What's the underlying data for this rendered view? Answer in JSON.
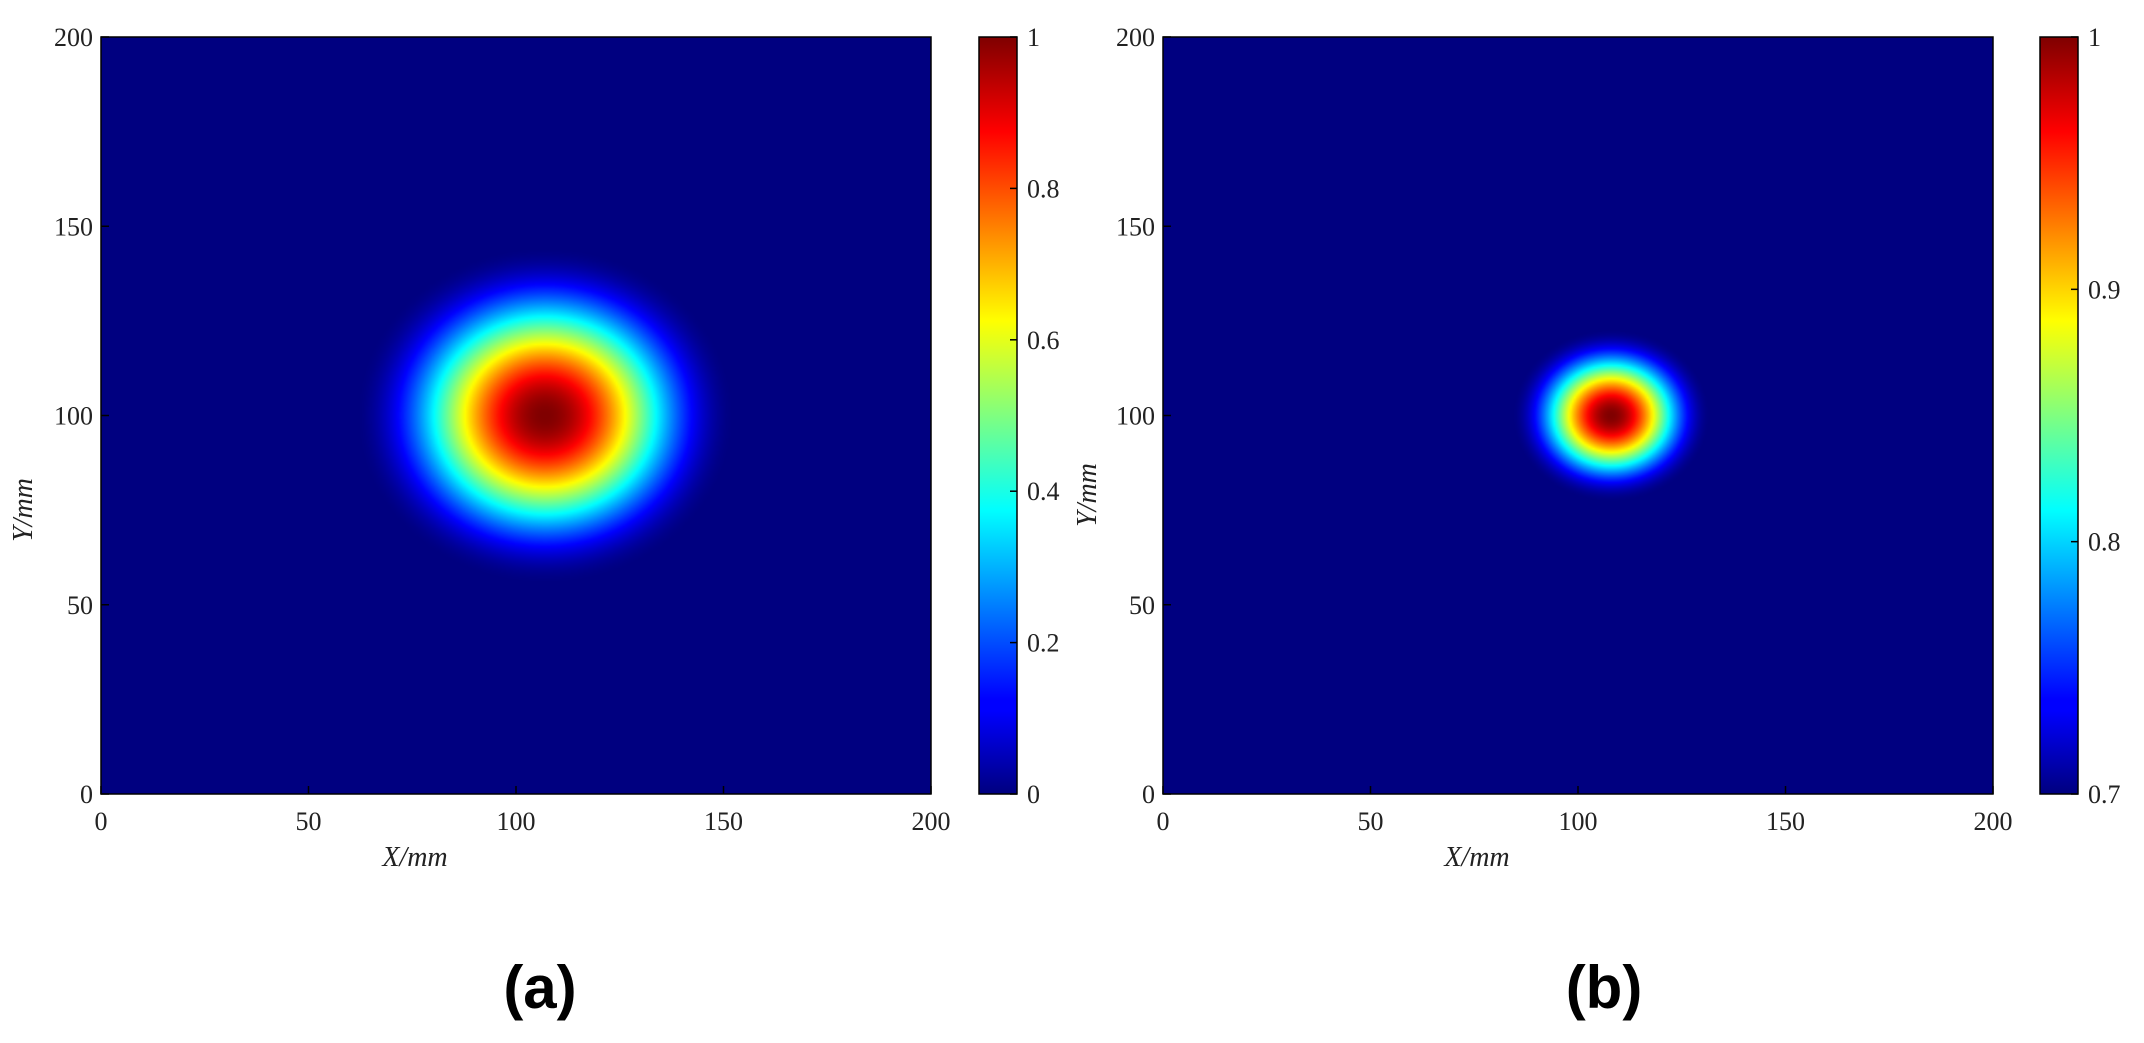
{
  "chart_data": [
    {
      "type": "heatmap",
      "panel_label": "(a)",
      "xlabel": "X/mm",
      "ylabel": "Y/mm",
      "xlim": [
        0,
        200
      ],
      "ylim": [
        0,
        200
      ],
      "xticks": [
        0,
        50,
        100,
        150,
        200
      ],
      "yticks": [
        0,
        50,
        100,
        150,
        200
      ],
      "colormap": "jet",
      "clim": [
        0,
        1
      ],
      "colorbar_ticks": [
        0,
        0.2,
        0.4,
        0.6,
        0.8,
        1
      ],
      "colorbar_tick_labels": [
        "0",
        "0.2",
        "0.4",
        "0.6",
        "0.8",
        "1"
      ],
      "hotspot": {
        "center_x": 107,
        "center_y": 100,
        "peak": 1,
        "radius_x": 46,
        "radius_y": 45,
        "background": 0
      }
    },
    {
      "type": "heatmap",
      "panel_label": "(b)",
      "xlabel": "X/mm",
      "ylabel": "Y/mm",
      "xlim": [
        0,
        200
      ],
      "ylim": [
        0,
        200
      ],
      "xticks": [
        0,
        50,
        100,
        150,
        200
      ],
      "yticks": [
        0,
        50,
        100,
        150,
        200
      ],
      "colormap": "jet",
      "clim": [
        0.7,
        1
      ],
      "colorbar_ticks": [
        0.7,
        0.8,
        0.9,
        1
      ],
      "colorbar_tick_labels": [
        "0.7",
        "0.8",
        "0.9",
        "1"
      ],
      "hotspot": {
        "center_x": 108,
        "center_y": 100,
        "peak": 1,
        "radius_x": 24,
        "radius_y": 23,
        "background": 0.7
      }
    }
  ],
  "colors": {
    "jet_low": "#00007F",
    "jet_high": "#7F0000"
  }
}
